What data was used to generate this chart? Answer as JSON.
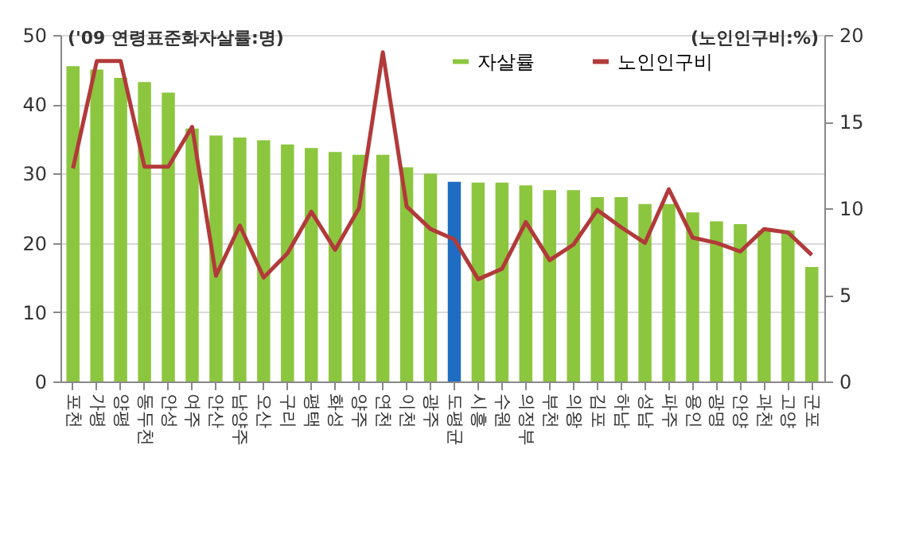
{
  "chart_data": {
    "type": "bar",
    "ylabel": "('09 연령표준화자살률:명)",
    "y2label": "(노인인구비:%)",
    "categories": [
      "포천",
      "가평",
      "양평",
      "동두천",
      "안성",
      "여주",
      "안산",
      "남양주",
      "오산",
      "구리",
      "평택",
      "화성",
      "양주",
      "연천",
      "이천",
      "광주",
      "도평균",
      "시흥",
      "수원",
      "의정부",
      "부천",
      "의왕",
      "김포",
      "하남",
      "성남",
      "파주",
      "용인",
      "광명",
      "안양",
      "과천",
      "고양",
      "군포"
    ],
    "series": [
      {
        "name": "자살률",
        "color": "#8cc63e",
        "colors": [
          "#8cc63e",
          "#8cc63e",
          "#8cc63e",
          "#8cc63e",
          "#8cc63e",
          "#8cc63e",
          "#8cc63e",
          "#8cc63e",
          "#8cc63e",
          "#8cc63e",
          "#8cc63e",
          "#8cc63e",
          "#8cc63e",
          "#8cc63e",
          "#8cc63e",
          "#8cc63e",
          "#1f6dc2",
          "#8cc63e",
          "#8cc63e",
          "#8cc63e",
          "#8cc63e",
          "#8cc63e",
          "#8cc63e",
          "#8cc63e",
          "#8cc63e",
          "#8cc63e",
          "#8cc63e",
          "#8cc63e",
          "#8cc63e",
          "#8cc63e",
          "#8cc63e",
          "#8cc63e"
        ],
        "values": [
          45.5,
          45.0,
          43.8,
          43.2,
          41.7,
          36.5,
          35.5,
          35.2,
          34.8,
          34.2,
          33.7,
          33.1,
          32.7,
          32.7,
          30.9,
          30.0,
          28.8,
          28.7,
          28.7,
          28.3,
          27.6,
          27.6,
          26.6,
          26.6,
          25.6,
          25.6,
          24.4,
          23.1,
          22.7,
          21.8,
          21.8,
          16.5
        ]
      },
      {
        "name": "노인인구비",
        "type": "line",
        "axis": "y2",
        "color": "#b23a3a",
        "values": [
          12.3,
          18.5,
          18.5,
          12.4,
          12.4,
          14.7,
          6.1,
          9.0,
          6.0,
          7.4,
          9.8,
          7.6,
          10.0,
          19.0,
          10.1,
          8.8,
          8.2,
          5.9,
          6.5,
          9.2,
          7.0,
          7.9,
          9.9,
          8.9,
          8.0,
          11.1,
          8.3,
          8.0,
          7.5,
          8.8,
          8.6,
          7.3
        ]
      }
    ],
    "ylim": [
      0,
      50
    ],
    "yticks": [
      0,
      10,
      20,
      30,
      40,
      50
    ],
    "y2lim": [
      0,
      20
    ],
    "y2ticks": [
      0,
      5,
      10,
      15,
      20
    ],
    "grid": "y",
    "legend": "top"
  }
}
